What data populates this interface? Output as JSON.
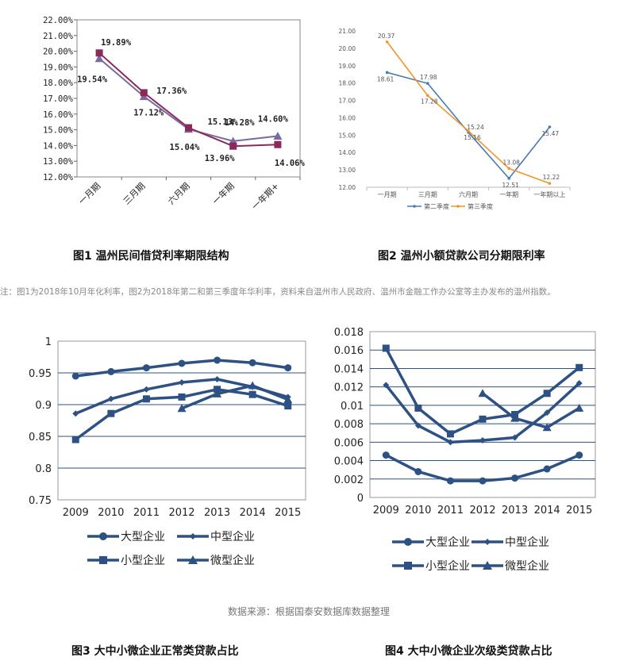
{
  "chart_data": [
    {
      "type": "line",
      "categories": [
        "一月期",
        "三月期",
        "六月期",
        "一年期",
        "一年期+"
      ],
      "series": [
        {
          "values": [
            19.54,
            17.12,
            15.04,
            14.28,
            14.6
          ],
          "color": "#7b6a9e",
          "marker": "triangle",
          "labels": [
            "19.54%",
            "17.12%",
            "15.04%",
            "14.28%",
            "14.60%"
          ]
        },
        {
          "values": [
            19.89,
            17.36,
            15.13,
            13.96,
            14.06
          ],
          "color": "#8b2a5a",
          "marker": "square",
          "labels": [
            "19.89%",
            "17.36%",
            "15.13%",
            "13.96%",
            "14.06%"
          ]
        }
      ],
      "ylim": [
        12.0,
        22.0
      ],
      "yticks": [
        "12.00%",
        "13.00%",
        "14.00%",
        "15.00%",
        "16.00%",
        "17.00%",
        "18.00%",
        "19.00%",
        "20.00%",
        "21.00%",
        "22.00%"
      ],
      "grid": false,
      "caption": "图1 温州民间借贷利率期限结构"
    },
    {
      "type": "line",
      "categories": [
        "一月期",
        "三月期",
        "六月期",
        "一年期",
        "一年期以上"
      ],
      "series": [
        {
          "name": "第二季度",
          "values": [
            18.61,
            17.98,
            15.16,
            12.51,
            15.47
          ],
          "color": "#4a7ab5",
          "labels": [
            "18.61",
            "17.98",
            "15.16",
            "12.51",
            "15.47"
          ]
        },
        {
          "name": "第三季度",
          "values": [
            20.37,
            17.28,
            15.24,
            13.08,
            12.22
          ],
          "color": "#f0952b",
          "labels": [
            "20.37",
            "17.28",
            "15.24",
            "13.08",
            "12.22"
          ]
        }
      ],
      "ylim": [
        12.0,
        21.0
      ],
      "yticks": [
        "12.00",
        "13.00",
        "14.00",
        "15.00",
        "16.00",
        "17.00",
        "18.00",
        "19.00",
        "20.00",
        "21.00"
      ],
      "legend": "bottom",
      "grid": false,
      "caption": "图2 温州小额贷款公司分期限利率"
    },
    {
      "type": "line",
      "categories": [
        "2009",
        "2010",
        "2011",
        "2012",
        "2013",
        "2014",
        "2015"
      ],
      "series": [
        {
          "name": "大型企业",
          "marker": "circle",
          "values": [
            0.945,
            0.952,
            0.958,
            0.965,
            0.97,
            0.966,
            0.958
          ]
        },
        {
          "name": "中型企业",
          "marker": "diamond",
          "values": [
            0.886,
            0.909,
            0.924,
            0.935,
            0.94,
            0.928,
            0.912
          ]
        },
        {
          "name": "小型企业",
          "marker": "square",
          "values": [
            0.845,
            0.886,
            0.909,
            0.912,
            0.924,
            0.916,
            0.898
          ]
        },
        {
          "name": "微型企业",
          "marker": "triangle",
          "values": [
            null,
            null,
            null,
            0.894,
            0.917,
            0.93,
            0.908
          ]
        }
      ],
      "ylim": [
        0.75,
        1.0
      ],
      "yticks": [
        "0.75",
        "0.8",
        "0.85",
        "0.9",
        "0.95",
        "1"
      ],
      "grid": true,
      "legend": "bottom",
      "color": "#2e5184",
      "caption": "图3 大中小微企业正常类贷款占比"
    },
    {
      "type": "line",
      "categories": [
        "2009",
        "2010",
        "2011",
        "2012",
        "2013",
        "2014",
        "2015"
      ],
      "series": [
        {
          "name": "大型企业",
          "marker": "circle",
          "values": [
            0.0046,
            0.0028,
            0.0018,
            0.0018,
            0.0021,
            0.0031,
            0.0046
          ]
        },
        {
          "name": "中型企业",
          "marker": "diamond",
          "values": [
            0.0122,
            0.0078,
            0.006,
            0.0062,
            0.0065,
            0.0092,
            0.0124
          ]
        },
        {
          "name": "小型企业",
          "marker": "square",
          "values": [
            0.0162,
            0.0097,
            0.0069,
            0.0085,
            0.009,
            0.0113,
            0.0141
          ]
        },
        {
          "name": "微型企业",
          "marker": "triangle",
          "values": [
            null,
            null,
            null,
            0.0113,
            0.0086,
            0.0076,
            0.0097
          ]
        }
      ],
      "ylim": [
        0,
        0.018
      ],
      "yticks": [
        "0",
        "0.002",
        "0.004",
        "0.006",
        "0.008",
        "0.01",
        "0.012",
        "0.014",
        "0.016",
        "0.018"
      ],
      "grid": true,
      "legend": "bottom",
      "color": "#2e5184",
      "caption": "图4 大中小微企业次级类贷款占比"
    }
  ],
  "note": "注：图1为2018年10月年化利率，图2为2018年第二和第三季度年华利率，资料来自温州市人民政府、温州市金融工作办公室等主办发布的温州指数。",
  "source": "数据来源：根据国泰安数据库数据整理"
}
